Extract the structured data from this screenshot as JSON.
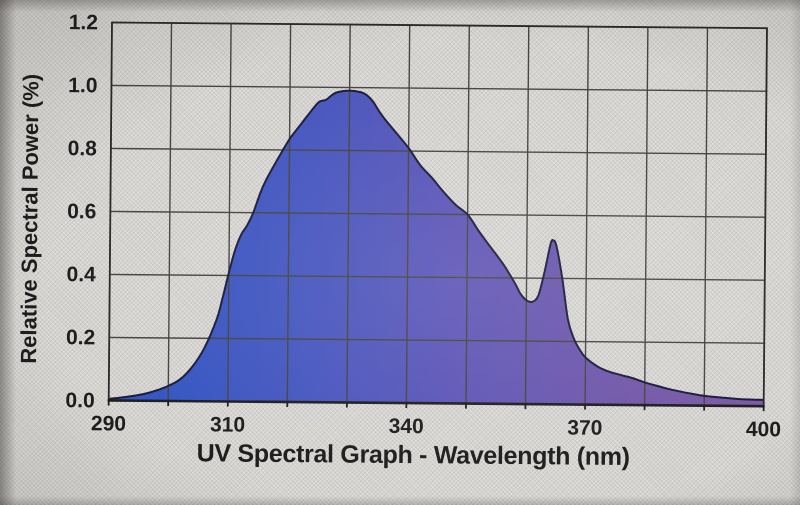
{
  "chart_data": {
    "type": "area",
    "title": "UV Spectral Graph - Wavelength (nm)",
    "xlabel": "Wavelength (nm)",
    "ylabel": "Relative Spectral Power (%)",
    "series_name": "Relative spectral power",
    "xlim": [
      290,
      400
    ],
    "ylim": [
      0,
      1.2
    ],
    "grid": true,
    "x_gridline_step_nm": 10,
    "y_gridline_step": 0.2,
    "x_ticks": [
      290,
      310,
      340,
      370,
      400
    ],
    "x_tick_labels": [
      "290",
      "310",
      "340",
      "370",
      "400"
    ],
    "y_ticks": [
      0.0,
      0.2,
      0.4,
      0.6,
      0.8,
      1.0,
      1.2
    ],
    "y_tick_labels": [
      "0.0",
      "0.2",
      "0.4",
      "0.6",
      "0.8",
      "1.0",
      "1.2"
    ],
    "x": [
      290,
      293,
      296,
      298,
      300,
      302,
      304,
      306,
      308,
      309,
      310,
      311,
      312,
      313,
      314,
      315,
      316,
      318,
      320,
      322,
      324,
      325,
      326,
      327,
      328,
      330,
      332,
      333,
      334,
      335,
      336,
      338,
      340,
      342,
      344,
      346,
      348,
      350,
      352,
      354,
      356,
      358,
      359,
      360,
      361,
      362,
      363,
      364,
      364.5,
      365,
      366,
      367,
      368,
      369,
      370,
      372,
      374,
      376,
      378,
      380,
      382,
      384,
      386,
      388,
      390,
      393,
      396,
      400
    ],
    "y": [
      0.005,
      0.012,
      0.022,
      0.033,
      0.048,
      0.07,
      0.11,
      0.17,
      0.26,
      0.33,
      0.41,
      0.48,
      0.53,
      0.56,
      0.6,
      0.655,
      0.7,
      0.77,
      0.835,
      0.885,
      0.935,
      0.955,
      0.96,
      0.975,
      0.985,
      0.99,
      0.985,
      0.975,
      0.955,
      0.925,
      0.9,
      0.855,
      0.81,
      0.755,
      0.715,
      0.67,
      0.63,
      0.6,
      0.545,
      0.495,
      0.445,
      0.385,
      0.35,
      0.33,
      0.325,
      0.345,
      0.42,
      0.51,
      0.52,
      0.5,
      0.4,
      0.27,
      0.21,
      0.175,
      0.15,
      0.122,
      0.105,
      0.095,
      0.085,
      0.072,
      0.062,
      0.052,
      0.044,
      0.037,
      0.031,
      0.026,
      0.022,
      0.02
    ],
    "annotations": [
      "main peak ~0.99 at 328-332 nm",
      "secondary narrow spike ~0.52 at ~364-365 nm",
      "local minimum ~0.32 at ~360-361 nm"
    ],
    "legend": null,
    "fill_gradient_stops": [
      {
        "offset": 0,
        "color": "#2e56c4"
      },
      {
        "offset": 0.3,
        "color": "#4656bf"
      },
      {
        "offset": 0.55,
        "color": "#5f55b5"
      },
      {
        "offset": 0.78,
        "color": "#7157a9"
      },
      {
        "offset": 1,
        "color": "#7d59a5"
      }
    ],
    "outline_color": "#1b1b3a"
  },
  "style": {
    "paper_color": "#d5d3d0",
    "grid_color": "#45443f",
    "border_color": "#2a2a28",
    "axis_color": "#1d1d1d",
    "text_color": "#1d1d1d"
  }
}
